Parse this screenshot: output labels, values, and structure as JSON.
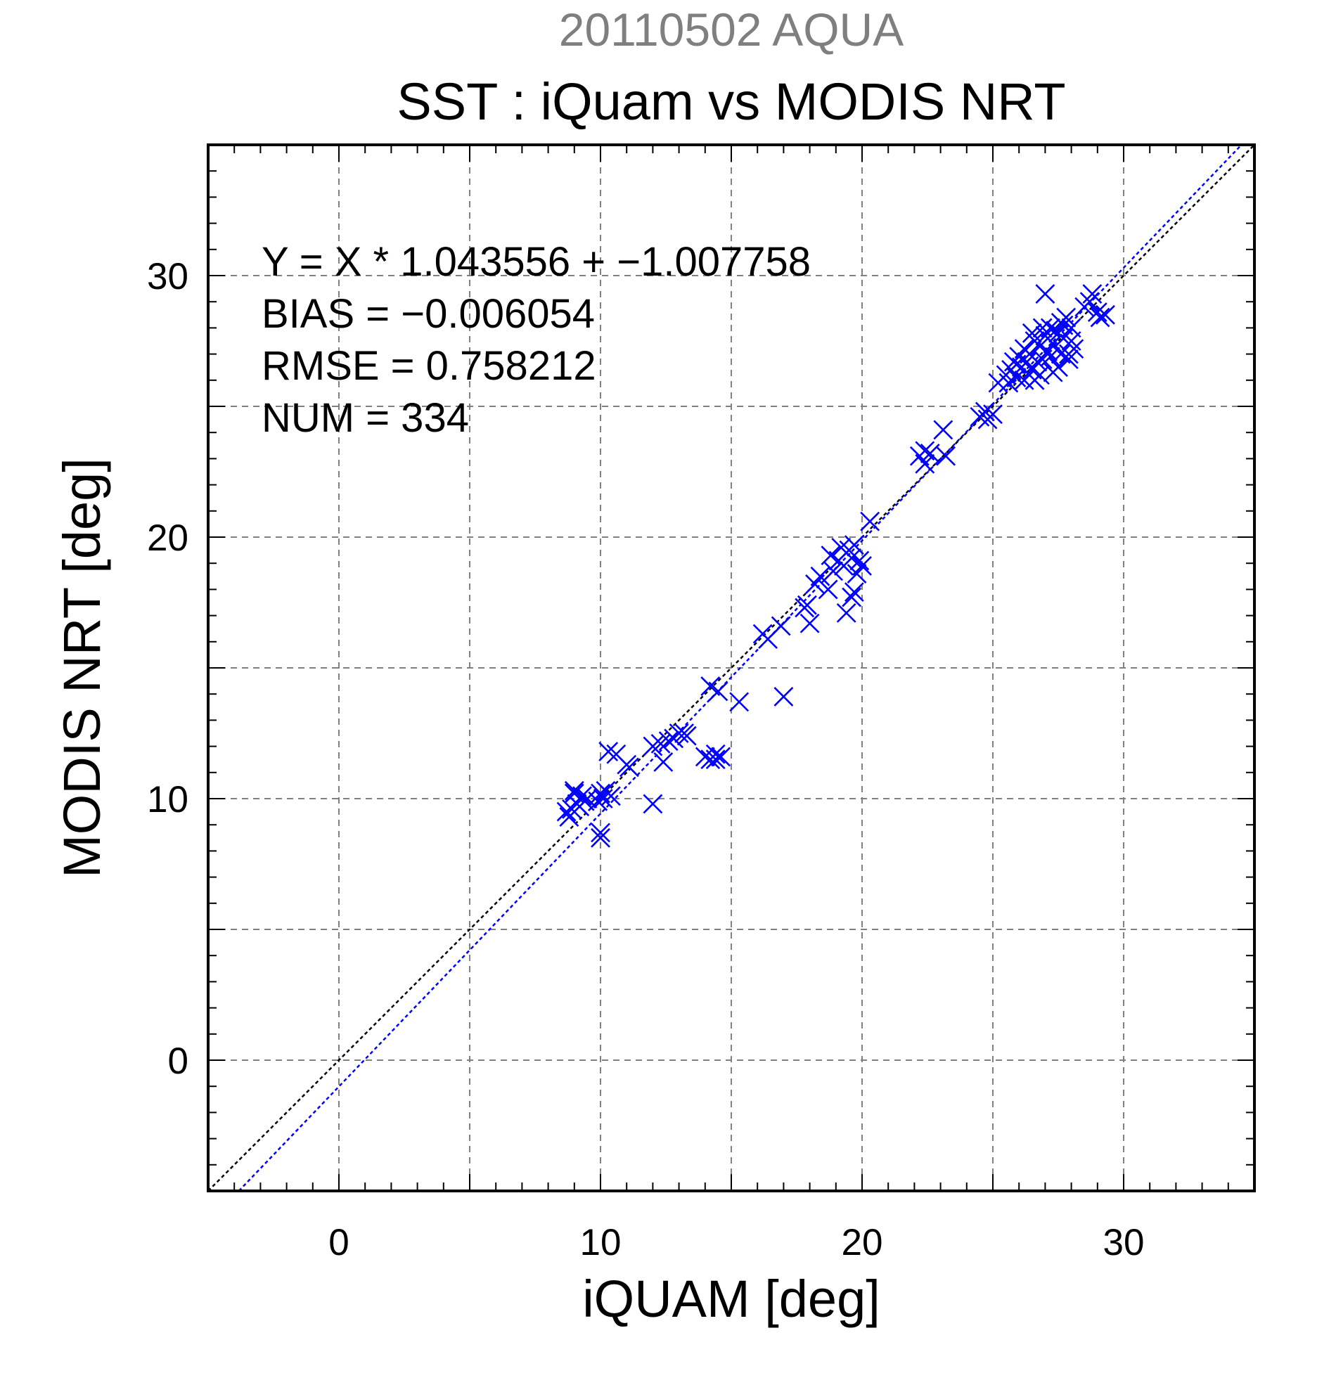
{
  "chart_data": {
    "type": "scatter",
    "title": "SST : iQuam vs MODIS NRT",
    "subtitle": "20110502 AQUA",
    "xlabel": "iQUAM [deg]",
    "ylabel": "MODIS NRT [deg]",
    "xlim": [
      -5,
      35
    ],
    "ylim": [
      -5,
      35
    ],
    "xticks": [
      "0",
      "10",
      "20",
      "30"
    ],
    "yticks": [
      "0",
      "10",
      "20",
      "30"
    ],
    "grid": true,
    "marker": "x",
    "colors": {
      "points": "#0000ff",
      "one_to_one": "#000000",
      "fit_line": "#0000ff",
      "subtitle": "#7f7f7f"
    },
    "stats": [
      "Y = X * 1.043556 + −1.007758",
      "BIAS = −0.006054",
      "RMSE = 0.758212",
      "NUM = 334"
    ],
    "fit": {
      "slope": 1.043556,
      "intercept": -1.007758
    },
    "one_to_one": {
      "slope": 1,
      "intercept": 0
    },
    "points": [
      [
        8.8,
        9.3
      ],
      [
        9.0,
        10.3
      ],
      [
        9.1,
        9.8
      ],
      [
        9.3,
        10.1
      ],
      [
        8.9,
        9.6
      ],
      [
        9.2,
        9.7
      ],
      [
        9.5,
        10.0
      ],
      [
        9.0,
        10.2
      ],
      [
        8.7,
        9.5
      ],
      [
        9.4,
        9.9
      ],
      [
        9.9,
        9.9
      ],
      [
        10.0,
        10.2
      ],
      [
        10.2,
        10.3
      ],
      [
        10.4,
        10.1
      ],
      [
        10.0,
        8.7
      ],
      [
        10.0,
        8.5
      ],
      [
        10.1,
        10.0
      ],
      [
        10.3,
        11.8
      ],
      [
        10.6,
        11.7
      ],
      [
        11.0,
        11.3
      ],
      [
        11.1,
        11.2
      ],
      [
        12.0,
        9.8
      ],
      [
        12.0,
        12.0
      ],
      [
        12.4,
        11.4
      ],
      [
        12.3,
        12.1
      ],
      [
        12.6,
        12.2
      ],
      [
        12.8,
        12.3
      ],
      [
        13.0,
        12.5
      ],
      [
        13.2,
        12.5
      ],
      [
        13.3,
        12.4
      ],
      [
        14.0,
        11.6
      ],
      [
        14.2,
        11.5
      ],
      [
        14.4,
        11.7
      ],
      [
        14.4,
        11.5
      ],
      [
        14.6,
        11.6
      ],
      [
        14.2,
        14.3
      ],
      [
        14.5,
        14.1
      ],
      [
        15.3,
        13.7
      ],
      [
        16.2,
        16.3
      ],
      [
        16.4,
        16.1
      ],
      [
        16.9,
        16.6
      ],
      [
        17.0,
        13.9
      ],
      [
        17.8,
        17.3
      ],
      [
        17.9,
        17.4
      ],
      [
        18.0,
        16.7
      ],
      [
        18.2,
        18.2
      ],
      [
        18.4,
        18.5
      ],
      [
        18.7,
        18.0
      ],
      [
        18.9,
        18.7
      ],
      [
        18.8,
        19.3
      ],
      [
        19.1,
        19.1
      ],
      [
        19.2,
        19.6
      ],
      [
        19.3,
        18.9
      ],
      [
        19.4,
        17.1
      ],
      [
        19.5,
        19.5
      ],
      [
        19.6,
        19.2
      ],
      [
        19.6,
        17.7
      ],
      [
        19.7,
        17.9
      ],
      [
        19.7,
        19.7
      ],
      [
        19.8,
        18.6
      ],
      [
        19.9,
        19.1
      ],
      [
        20.0,
        18.9
      ],
      [
        20.3,
        20.6
      ],
      [
        22.2,
        23.1
      ],
      [
        22.4,
        22.8
      ],
      [
        22.6,
        23.2
      ],
      [
        22.4,
        23.3
      ],
      [
        23.1,
        24.1
      ],
      [
        23.2,
        23.1
      ],
      [
        24.5,
        24.6
      ],
      [
        24.7,
        24.8
      ],
      [
        24.8,
        24.5
      ],
      [
        25.0,
        24.7
      ],
      [
        25.2,
        25.9
      ],
      [
        25.5,
        26.2
      ],
      [
        25.6,
        25.9
      ],
      [
        25.7,
        26.4
      ],
      [
        25.8,
        26.7
      ],
      [
        25.9,
        26.1
      ],
      [
        26.0,
        26.9
      ],
      [
        26.1,
        26.5
      ],
      [
        26.2,
        27.2
      ],
      [
        26.3,
        26.7
      ],
      [
        26.4,
        27.0
      ],
      [
        26.5,
        26.4
      ],
      [
        26.6,
        27.5
      ],
      [
        26.7,
        26.7
      ],
      [
        26.8,
        27.3
      ],
      [
        26.9,
        26.8
      ],
      [
        27.0,
        29.3
      ],
      [
        27.0,
        27.7
      ],
      [
        27.1,
        27.1
      ],
      [
        27.2,
        28.0
      ],
      [
        27.3,
        27.4
      ],
      [
        27.3,
        26.3
      ],
      [
        27.4,
        27.9
      ],
      [
        27.5,
        26.5
      ],
      [
        27.6,
        28.2
      ],
      [
        27.7,
        27.6
      ],
      [
        27.8,
        28.4
      ],
      [
        27.9,
        27.0
      ],
      [
        28.0,
        28.0
      ],
      [
        27.6,
        27.0
      ],
      [
        27.9,
        26.8
      ],
      [
        28.0,
        27.5
      ],
      [
        28.1,
        27.2
      ],
      [
        28.5,
        28.8
      ],
      [
        28.7,
        29.0
      ],
      [
        28.8,
        29.3
      ],
      [
        29.0,
        28.6
      ],
      [
        29.1,
        28.4
      ],
      [
        29.3,
        28.5
      ],
      [
        26.5,
        27.8
      ],
      [
        26.9,
        28.0
      ],
      [
        27.2,
        26.9
      ],
      [
        27.5,
        27.8
      ],
      [
        27.7,
        28.1
      ],
      [
        26.2,
        26.0
      ],
      [
        26.8,
        26.2
      ],
      [
        25.9,
        26.6
      ],
      [
        26.6,
        26.0
      ]
    ]
  }
}
